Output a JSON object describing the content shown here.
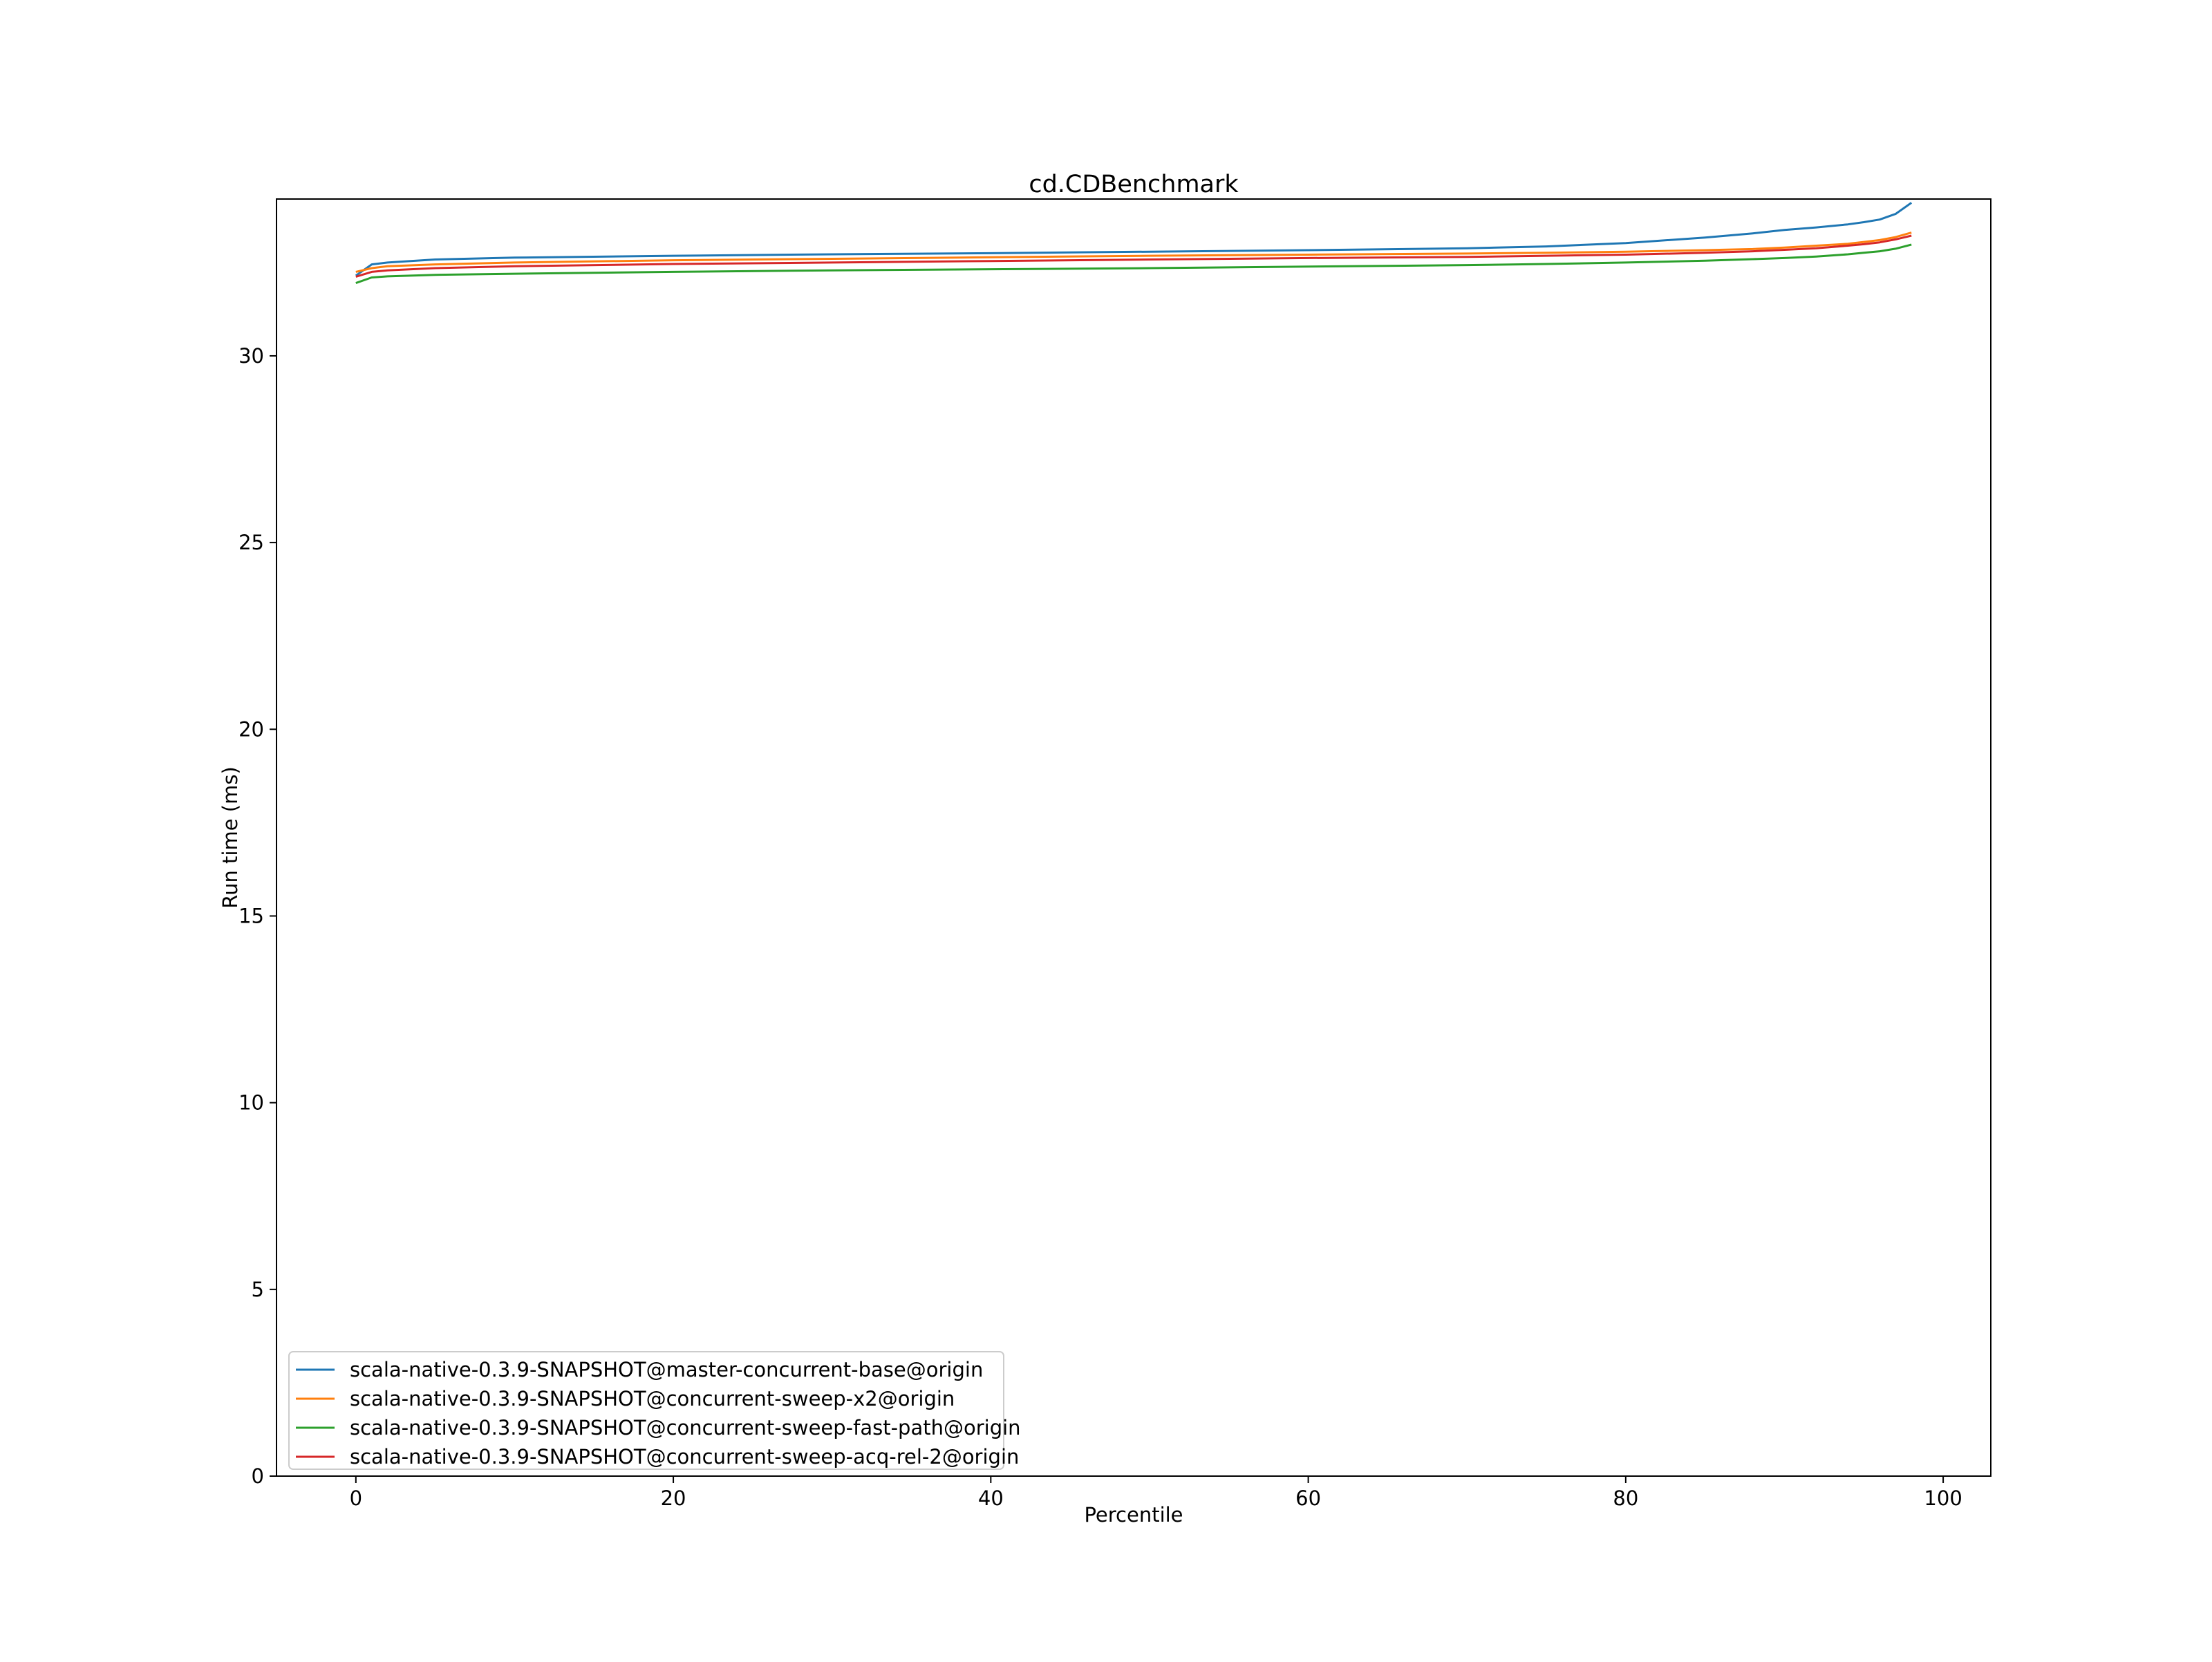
{
  "chart_data": {
    "type": "line",
    "title": "cd.CDBenchmark",
    "xlabel": "Percentile",
    "ylabel": "Run time (ms)",
    "xlim": [
      -5,
      103
    ],
    "ylim": [
      0,
      34.2
    ],
    "x_ticks": [
      0,
      20,
      40,
      60,
      80,
      100
    ],
    "y_ticks": [
      0,
      5,
      10,
      15,
      20,
      25,
      30
    ],
    "x_tick_labels": [
      "0",
      "20",
      "40",
      "60",
      "80",
      "100"
    ],
    "y_tick_labels": [
      "0",
      "5",
      "10",
      "15",
      "20",
      "25",
      "30"
    ],
    "grid": false,
    "legend_position": "lower-left",
    "x": [
      0,
      1,
      2,
      5,
      10,
      20,
      30,
      40,
      50,
      60,
      70,
      75,
      80,
      85,
      88,
      90,
      92,
      94,
      95,
      96,
      97,
      98
    ],
    "series": [
      {
        "name": "scala-native-0.3.9-SNAPSHOT@master-concurrent-base@origin",
        "color": "#1f77b4",
        "values": [
          32.15,
          32.45,
          32.5,
          32.58,
          32.63,
          32.68,
          32.72,
          32.75,
          32.79,
          32.83,
          32.88,
          32.93,
          33.02,
          33.17,
          33.28,
          33.37,
          33.44,
          33.52,
          33.58,
          33.65,
          33.8,
          34.1
        ]
      },
      {
        "name": "scala-native-0.3.9-SNAPSHOT@concurrent-sweep-x2@origin",
        "color": "#ff7f0e",
        "values": [
          32.25,
          32.35,
          32.4,
          32.45,
          32.5,
          32.56,
          32.6,
          32.64,
          32.68,
          32.71,
          32.74,
          32.76,
          32.79,
          32.83,
          32.86,
          32.9,
          32.95,
          33.0,
          33.05,
          33.1,
          33.18,
          33.3
        ]
      },
      {
        "name": "scala-native-0.3.9-SNAPSHOT@concurrent-sweep-fast-path@origin",
        "color": "#2ca02c",
        "values": [
          31.95,
          32.1,
          32.13,
          32.17,
          32.2,
          32.25,
          32.29,
          32.32,
          32.35,
          32.39,
          32.43,
          32.46,
          32.5,
          32.55,
          32.59,
          32.62,
          32.66,
          32.72,
          32.76,
          32.8,
          32.87,
          32.98
        ]
      },
      {
        "name": "scala-native-0.3.9-SNAPSHOT@concurrent-sweep-acq-rel-2@origin",
        "color": "#d62728",
        "values": [
          32.12,
          32.25,
          32.29,
          32.35,
          32.4,
          32.46,
          32.5,
          32.54,
          32.58,
          32.62,
          32.65,
          32.68,
          32.71,
          32.76,
          32.8,
          32.84,
          32.88,
          32.95,
          32.99,
          33.04,
          33.12,
          33.22
        ]
      }
    ]
  }
}
